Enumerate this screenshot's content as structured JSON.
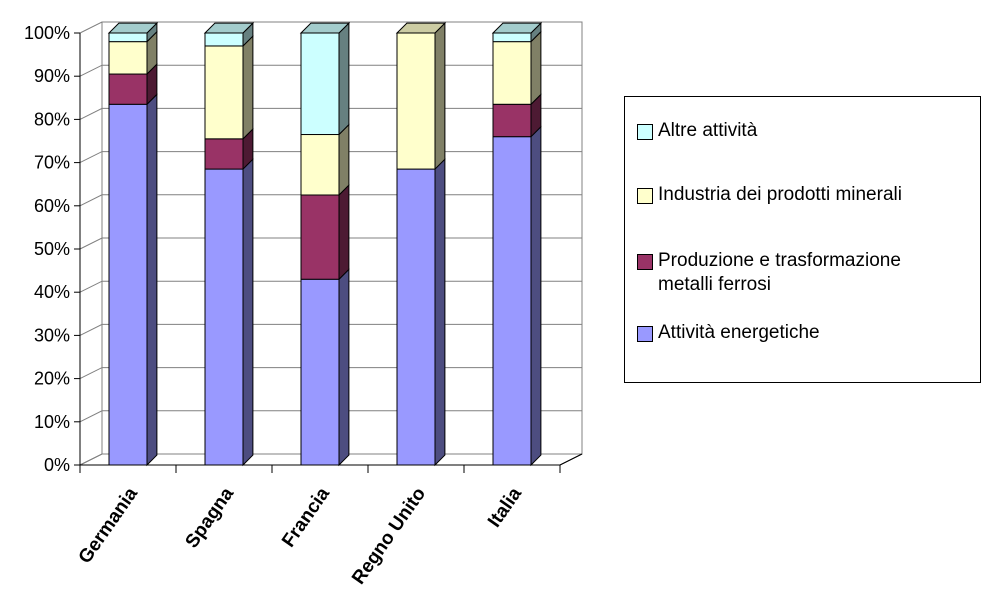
{
  "chart_data": {
    "type": "bar",
    "stacked": true,
    "percent": true,
    "style": "3d-column",
    "title": "",
    "xlabel": "",
    "ylabel": "",
    "ylim": [
      0,
      100
    ],
    "y_ticks": [
      "0%",
      "10%",
      "20%",
      "30%",
      "40%",
      "50%",
      "60%",
      "70%",
      "80%",
      "90%",
      "100%"
    ],
    "categories": [
      "Germania",
      "Spagna",
      "Francia",
      "Regno Unito",
      "Italia"
    ],
    "series": [
      {
        "name": "Attività energetiche",
        "color": "#9999ff",
        "values": [
          83.5,
          68.5,
          43,
          68.5,
          76
        ]
      },
      {
        "name": "Produzione e trasformazione metalli ferrosi",
        "color": "#993366",
        "values": [
          7,
          7,
          19.5,
          0,
          7.5
        ]
      },
      {
        "name": "Industria dei prodotti minerali",
        "color": "#ffffcc",
        "values": [
          7.5,
          21.5,
          14,
          31.5,
          14.5
        ]
      },
      {
        "name": "Altre attività",
        "color": "#ccffff",
        "values": [
          2,
          3,
          23.5,
          0,
          2
        ]
      }
    ],
    "grid": true,
    "legend_position": "right"
  },
  "legend": {
    "items": [
      {
        "label": "Altre attività",
        "color": "#ccffff"
      },
      {
        "label": "Industria dei prodotti minerali",
        "color": "#ffffcc"
      },
      {
        "label": "Produzione e trasformazione\nmetalli ferrosi",
        "color": "#993366"
      },
      {
        "label": "Attività energetiche",
        "color": "#9999ff"
      }
    ]
  }
}
